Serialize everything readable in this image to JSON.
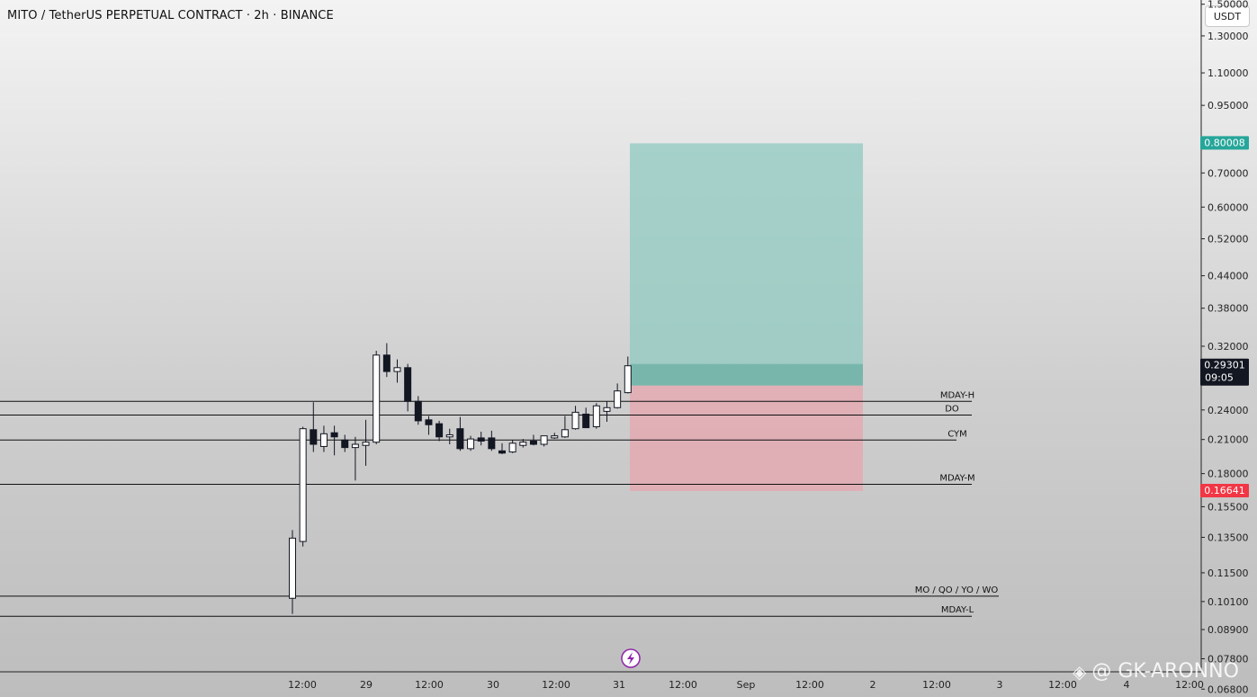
{
  "header": {
    "title": "MITO / TetherUS PERPETUAL CONTRACT · 2h · BINANCE",
    "currency_button": "USDT"
  },
  "watermark": {
    "text": "@ GK-ARONNO",
    "icon": "binance-logo-icon"
  },
  "colors": {
    "profit_zone": "#8fc9c0",
    "loss_zone": "#e6a6ae",
    "target_badge": "#26a69a",
    "stop_badge": "#f23645",
    "current_badge": "#131722",
    "candle_up_fill": "#ffffff",
    "candle_down_fill": "#131722",
    "flash_icon": "#8e24aa"
  },
  "chart_data": {
    "type": "candlestick",
    "title": "MITO / TetherUS PERPETUAL CONTRACT · 2h · BINANCE",
    "y_scale": "log",
    "ylim": [
      0.062,
      1.6
    ],
    "y_ticks": [
      "1.50000",
      "1.30000",
      "1.10000",
      "0.95000",
      "0.70000",
      "0.60000",
      "0.52000",
      "0.44000",
      "0.38000",
      "0.32000",
      "0.24000",
      "0.21000",
      "0.18000",
      "0.15500",
      "0.13500",
      "0.11500",
      "0.10100",
      "0.08900",
      "0.07800",
      "0.06800"
    ],
    "x_ticks": [
      "12:00",
      "29",
      "12:00",
      "30",
      "12:00",
      "31",
      "12:00",
      "Sep",
      "12:00",
      "2",
      "12:00",
      "3",
      "12:00",
      "4",
      "12:00"
    ],
    "candles": [
      {
        "o": 0.1025,
        "h": 0.1395,
        "l": 0.0955,
        "c": 0.1345
      },
      {
        "o": 0.1325,
        "h": 0.2225,
        "l": 0.1295,
        "c": 0.2205
      },
      {
        "o": 0.2195,
        "h": 0.2485,
        "l": 0.1985,
        "c": 0.2055
      },
      {
        "o": 0.2035,
        "h": 0.2235,
        "l": 0.1985,
        "c": 0.2155
      },
      {
        "o": 0.2165,
        "h": 0.2235,
        "l": 0.1955,
        "c": 0.2125
      },
      {
        "o": 0.2095,
        "h": 0.2145,
        "l": 0.1985,
        "c": 0.2025
      },
      {
        "o": 0.2025,
        "h": 0.2125,
        "l": 0.1745,
        "c": 0.2055
      },
      {
        "o": 0.2045,
        "h": 0.2295,
        "l": 0.1865,
        "c": 0.2075
      },
      {
        "o": 0.2075,
        "h": 0.3135,
        "l": 0.2055,
        "c": 0.3075
      },
      {
        "o": 0.3075,
        "h": 0.3245,
        "l": 0.2785,
        "c": 0.2855
      },
      {
        "o": 0.2855,
        "h": 0.3015,
        "l": 0.2715,
        "c": 0.2905
      },
      {
        "o": 0.2905,
        "h": 0.2955,
        "l": 0.2385,
        "c": 0.2495
      },
      {
        "o": 0.2495,
        "h": 0.2555,
        "l": 0.2245,
        "c": 0.2285
      },
      {
        "o": 0.2295,
        "h": 0.2335,
        "l": 0.2145,
        "c": 0.2245
      },
      {
        "o": 0.2255,
        "h": 0.2285,
        "l": 0.2085,
        "c": 0.2125
      },
      {
        "o": 0.2125,
        "h": 0.2205,
        "l": 0.2055,
        "c": 0.2145
      },
      {
        "o": 0.2205,
        "h": 0.2325,
        "l": 0.1995,
        "c": 0.2015
      },
      {
        "o": 0.2015,
        "h": 0.2135,
        "l": 0.1995,
        "c": 0.2105
      },
      {
        "o": 0.2115,
        "h": 0.2175,
        "l": 0.2045,
        "c": 0.2085
      },
      {
        "o": 0.2115,
        "h": 0.2185,
        "l": 0.1995,
        "c": 0.2015
      },
      {
        "o": 0.1995,
        "h": 0.2065,
        "l": 0.1965,
        "c": 0.1975
      },
      {
        "o": 0.1985,
        "h": 0.2095,
        "l": 0.1975,
        "c": 0.2065
      },
      {
        "o": 0.2045,
        "h": 0.2105,
        "l": 0.2025,
        "c": 0.2075
      },
      {
        "o": 0.2085,
        "h": 0.2145,
        "l": 0.2045,
        "c": 0.2055
      },
      {
        "o": 0.2055,
        "h": 0.2135,
        "l": 0.2035,
        "c": 0.2135
      },
      {
        "o": 0.2115,
        "h": 0.2165,
        "l": 0.2105,
        "c": 0.2135
      },
      {
        "o": 0.2125,
        "h": 0.2335,
        "l": 0.2115,
        "c": 0.2195
      },
      {
        "o": 0.2205,
        "h": 0.2445,
        "l": 0.2195,
        "c": 0.2375
      },
      {
        "o": 0.2355,
        "h": 0.2425,
        "l": 0.2215,
        "c": 0.2215
      },
      {
        "o": 0.2225,
        "h": 0.2475,
        "l": 0.2205,
        "c": 0.2445
      },
      {
        "o": 0.2385,
        "h": 0.2495,
        "l": 0.2275,
        "c": 0.2425
      },
      {
        "o": 0.2425,
        "h": 0.2705,
        "l": 0.2415,
        "c": 0.2615
      },
      {
        "o": 0.2595,
        "h": 0.3055,
        "l": 0.2585,
        "c": 0.293
      }
    ],
    "levels": [
      {
        "label": "MDAY-H",
        "price": 0.2495
      },
      {
        "label": "DO",
        "price": 0.2345
      },
      {
        "label": "CYM",
        "price": 0.2095
      },
      {
        "label": "MDAY-M",
        "price": 0.1715
      },
      {
        "label": "MO / QO / YO / WO",
        "price": 0.1035
      },
      {
        "label": "MDAY-L",
        "price": 0.0945
      }
    ],
    "position": {
      "type": "long",
      "entry": 0.268,
      "target": 0.80008,
      "stop": 0.16641,
      "target_label": "0.80008",
      "stop_label": "0.16641"
    },
    "current_price": {
      "label": "0.29301",
      "value": 0.29301,
      "countdown": "09:05"
    }
  }
}
